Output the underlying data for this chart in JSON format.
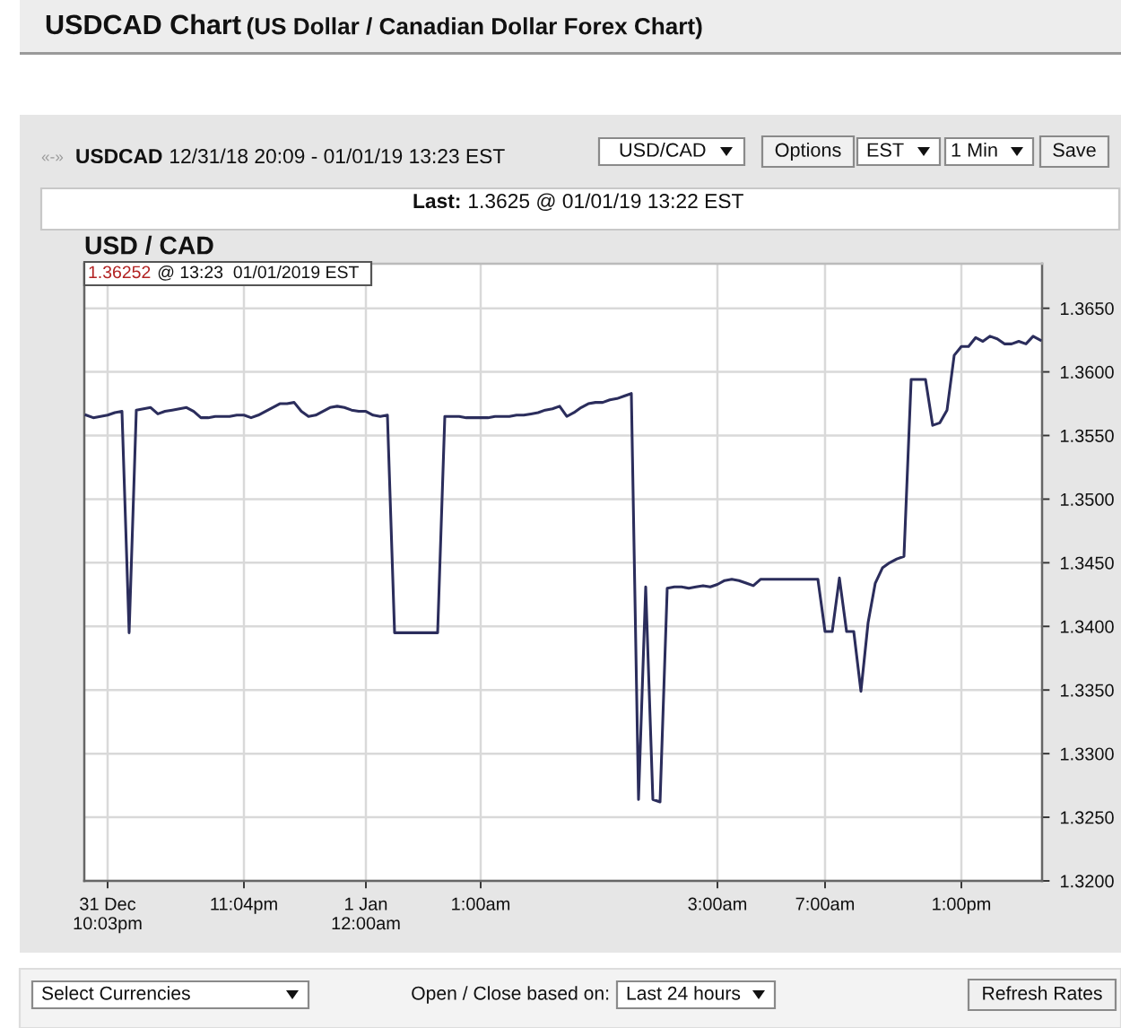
{
  "chart_data": {
    "type": "line",
    "title": "USDCAD Chart",
    "subtitle": "(US Dollar / Canadian Dollar Forex Chart)",
    "annotations": [
      "«-»",
      "USDCAD",
      "12/31/18 20:09 - 01/01/19 13:23 EST",
      "USD/CAD",
      "Options",
      "EST",
      "1 Min",
      "Save",
      "Last:",
      "1.3625 @ 01/01/19 13:22 EST",
      "USD / CAD",
      "1.36252",
      "@ 13:23  01/01/2019 EST",
      "Select Currencies",
      "Open / Close based on:",
      "Last 24 hours",
      "Refresh Rates"
    ],
    "categories": [
      null,
      null,
      null,
      "31 Dec\n10:03pm",
      null,
      null,
      null,
      null,
      null,
      null,
      null,
      null,
      null,
      null,
      null,
      null,
      null,
      null,
      null,
      null,
      null,
      null,
      "11:04pm",
      null,
      null,
      null,
      null,
      null,
      null,
      null,
      null,
      null,
      null,
      null,
      null,
      null,
      null,
      null,
      null,
      "1 Jan\n12:00am",
      null,
      null,
      null,
      null,
      null,
      null,
      null,
      null,
      null,
      null,
      null,
      null,
      null,
      null,
      null,
      "1:00am",
      null,
      null,
      null,
      null,
      null,
      null,
      null,
      null,
      null,
      null,
      null,
      null,
      null,
      null,
      null,
      null,
      null,
      null,
      null,
      null,
      null,
      null,
      null,
      null,
      null,
      null,
      null,
      null,
      null,
      null,
      null,
      null,
      "3:00am",
      null,
      null,
      null,
      null,
      null,
      null,
      null,
      null,
      null,
      null,
      null,
      null,
      null,
      null,
      "7:00am",
      null,
      null,
      null,
      null,
      null,
      null,
      null,
      null,
      null,
      null,
      null,
      null,
      null,
      null,
      null,
      null,
      null,
      null,
      "1:00pm",
      null,
      null,
      null,
      null,
      null,
      null,
      null,
      null,
      null,
      null,
      null
    ],
    "series": [
      {
        "color": "#2b2d5c",
        "values": [
          1.3566,
          1.3564,
          1.3565,
          1.3566,
          1.3568,
          1.3569,
          1.3395,
          1.357,
          1.3571,
          1.3572,
          1.3567,
          1.3569,
          1.357,
          1.3571,
          1.3572,
          1.3569,
          1.3564,
          1.3564,
          1.3565,
          1.3565,
          1.3565,
          1.3566,
          1.3566,
          1.3564,
          1.3566,
          1.3569,
          1.3572,
          1.3575,
          1.3575,
          1.3576,
          1.3569,
          1.3565,
          1.3566,
          1.3569,
          1.3572,
          1.3573,
          1.3572,
          1.357,
          1.3569,
          1.3569,
          1.3566,
          1.3565,
          1.3566,
          1.3395,
          1.3395,
          1.3395,
          1.3395,
          1.3395,
          1.3395,
          1.3395,
          1.3565,
          1.3565,
          1.3565,
          1.3564,
          1.3564,
          1.3564,
          1.3564,
          1.3565,
          1.3565,
          1.3565,
          1.3566,
          1.3566,
          1.3567,
          1.3568,
          1.357,
          1.3571,
          1.3573,
          1.3565,
          1.3568,
          1.3572,
          1.3575,
          1.3576,
          1.3576,
          1.3578,
          1.3579,
          1.3581,
          1.3583,
          1.3264,
          1.3431,
          1.3264,
          1.3262,
          1.343,
          1.3431,
          1.3431,
          1.343,
          1.3431,
          1.3432,
          1.3431,
          1.3433,
          1.3436,
          1.3437,
          1.3436,
          1.3434,
          1.3432,
          1.3437,
          1.3437,
          1.3437,
          1.3437,
          1.3437,
          1.3437,
          1.3437,
          1.3437,
          1.3437,
          1.3396,
          1.3396,
          1.3438,
          1.3396,
          1.3396,
          1.3349,
          1.3403,
          1.3434,
          1.3446,
          1.345,
          1.3453,
          1.3455,
          1.3594,
          1.3594,
          1.3594,
          1.3558,
          1.356,
          1.357,
          1.3613,
          1.362,
          1.362,
          1.3627,
          1.3624,
          1.3628,
          1.3626,
          1.3622,
          1.3622,
          1.3624,
          1.3622,
          1.3628,
          1.3625
        ]
      }
    ],
    "ylim": [
      1.32,
      1.3685
    ],
    "yticks": [
      {
        "value": 1.32,
        "label": "1.3200"
      },
      {
        "value": 1.325,
        "label": "1.3250"
      },
      {
        "value": 1.33,
        "label": "1.3300"
      },
      {
        "value": 1.335,
        "label": "1.3350"
      },
      {
        "value": 1.34,
        "label": "1.3400"
      },
      {
        "value": 1.345,
        "label": "1.3450"
      },
      {
        "value": 1.35,
        "label": "1.3500"
      },
      {
        "value": 1.355,
        "label": "1.3550"
      },
      {
        "value": 1.36,
        "label": "1.3600"
      },
      {
        "value": 1.365,
        "label": "1.3650"
      }
    ],
    "grid": true
  }
}
